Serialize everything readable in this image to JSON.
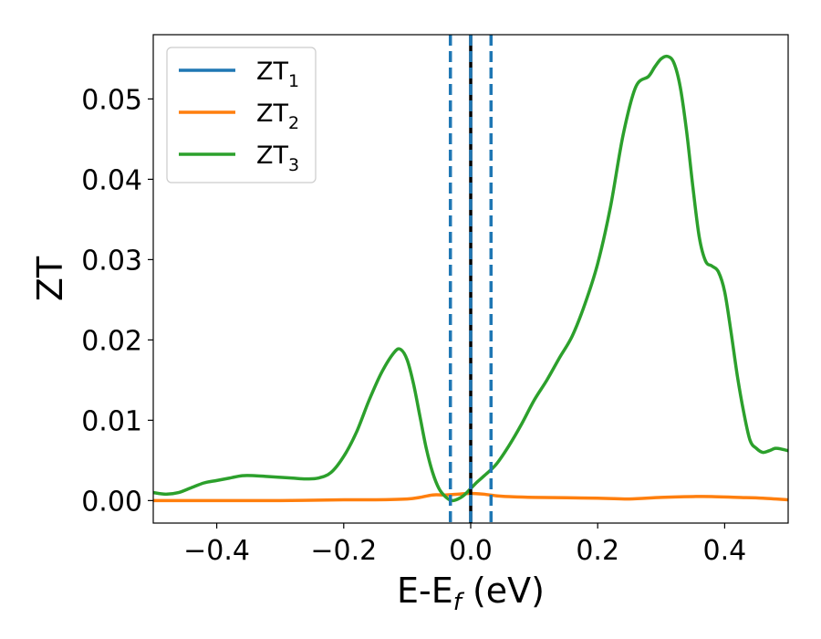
{
  "chart_data": {
    "type": "line",
    "xlabel": "E-E",
    "xlabel_sub": "f",
    "xlabel_unit": " (eV)",
    "ylabel": "ZT",
    "xlim": [
      -0.5,
      0.5
    ],
    "ylim": [
      -0.0028,
      0.058
    ],
    "xticks": [
      -0.4,
      -0.2,
      0.0,
      0.2,
      0.4
    ],
    "xtick_labels": [
      "−0.4",
      "−0.2",
      "0.0",
      "0.2",
      "0.4"
    ],
    "yticks": [
      0.0,
      0.01,
      0.02,
      0.03,
      0.04,
      0.05
    ],
    "ytick_labels": [
      "0.00",
      "0.01",
      "0.02",
      "0.03",
      "0.04",
      "0.05"
    ],
    "grid": false,
    "legend_position": "top-left",
    "series": [
      {
        "name": "ZT",
        "name_sub": "1",
        "color": "#1f77b4",
        "style": "solid",
        "x": [],
        "y": []
      },
      {
        "name": "ZT",
        "name_sub": "2",
        "color": "#ff7f0e",
        "style": "solid",
        "x": [
          -0.5,
          -0.4,
          -0.3,
          -0.2,
          -0.15,
          -0.1,
          -0.08,
          -0.06,
          -0.04,
          -0.02,
          0.0,
          0.02,
          0.04,
          0.06,
          0.1,
          0.2,
          0.25,
          0.3,
          0.35,
          0.38,
          0.42,
          0.46,
          0.5
        ],
        "y": [
          0.0,
          0.0,
          0.0,
          0.0001,
          0.0001,
          0.0002,
          0.0004,
          0.0007,
          0.0007,
          0.0008,
          0.0009,
          0.0008,
          0.0006,
          0.0005,
          0.0004,
          0.0003,
          0.0002,
          0.0004,
          0.0005,
          0.0005,
          0.0004,
          0.0003,
          0.0001
        ]
      },
      {
        "name": "ZT",
        "name_sub": "3",
        "color": "#2ca02c",
        "style": "solid",
        "x": [
          -0.5,
          -0.48,
          -0.46,
          -0.44,
          -0.42,
          -0.4,
          -0.38,
          -0.36,
          -0.34,
          -0.32,
          -0.3,
          -0.28,
          -0.26,
          -0.24,
          -0.22,
          -0.2,
          -0.18,
          -0.16,
          -0.14,
          -0.12,
          -0.11,
          -0.1,
          -0.09,
          -0.08,
          -0.07,
          -0.06,
          -0.05,
          -0.04,
          -0.03,
          -0.02,
          -0.01,
          0.0,
          0.01,
          0.02,
          0.04,
          0.06,
          0.08,
          0.1,
          0.12,
          0.14,
          0.16,
          0.18,
          0.2,
          0.22,
          0.24,
          0.26,
          0.28,
          0.29,
          0.3,
          0.31,
          0.32,
          0.33,
          0.34,
          0.35,
          0.36,
          0.37,
          0.38,
          0.39,
          0.4,
          0.41,
          0.42,
          0.43,
          0.44,
          0.45,
          0.46,
          0.47,
          0.48,
          0.49,
          0.5
        ],
        "y": [
          0.001,
          0.0008,
          0.001,
          0.0016,
          0.0022,
          0.0025,
          0.0028,
          0.0031,
          0.0031,
          0.003,
          0.0029,
          0.0028,
          0.0027,
          0.0028,
          0.0035,
          0.0055,
          0.0085,
          0.0125,
          0.016,
          0.0185,
          0.0188,
          0.0175,
          0.0145,
          0.0105,
          0.0065,
          0.0035,
          0.0015,
          0.0005,
          0.0,
          0.0002,
          0.0007,
          0.0015,
          0.0023,
          0.003,
          0.0045,
          0.0068,
          0.0095,
          0.0125,
          0.015,
          0.0178,
          0.0205,
          0.0245,
          0.0295,
          0.0365,
          0.0455,
          0.0515,
          0.0528,
          0.054,
          0.055,
          0.0553,
          0.0545,
          0.0515,
          0.046,
          0.039,
          0.0328,
          0.0298,
          0.0292,
          0.0285,
          0.026,
          0.021,
          0.0155,
          0.011,
          0.0075,
          0.0065,
          0.006,
          0.0062,
          0.0065,
          0.0064,
          0.0062
        ]
      }
    ],
    "vlines": [
      {
        "x": -0.032,
        "color": "#1f77b4",
        "style": "dashed"
      },
      {
        "x": 0.032,
        "color": "#1f77b4",
        "style": "dashed"
      },
      {
        "x": 0.0,
        "color": "#000000",
        "style": "solid"
      },
      {
        "x": 0.0,
        "color": "#1f77b4",
        "style": "dashed"
      }
    ]
  }
}
